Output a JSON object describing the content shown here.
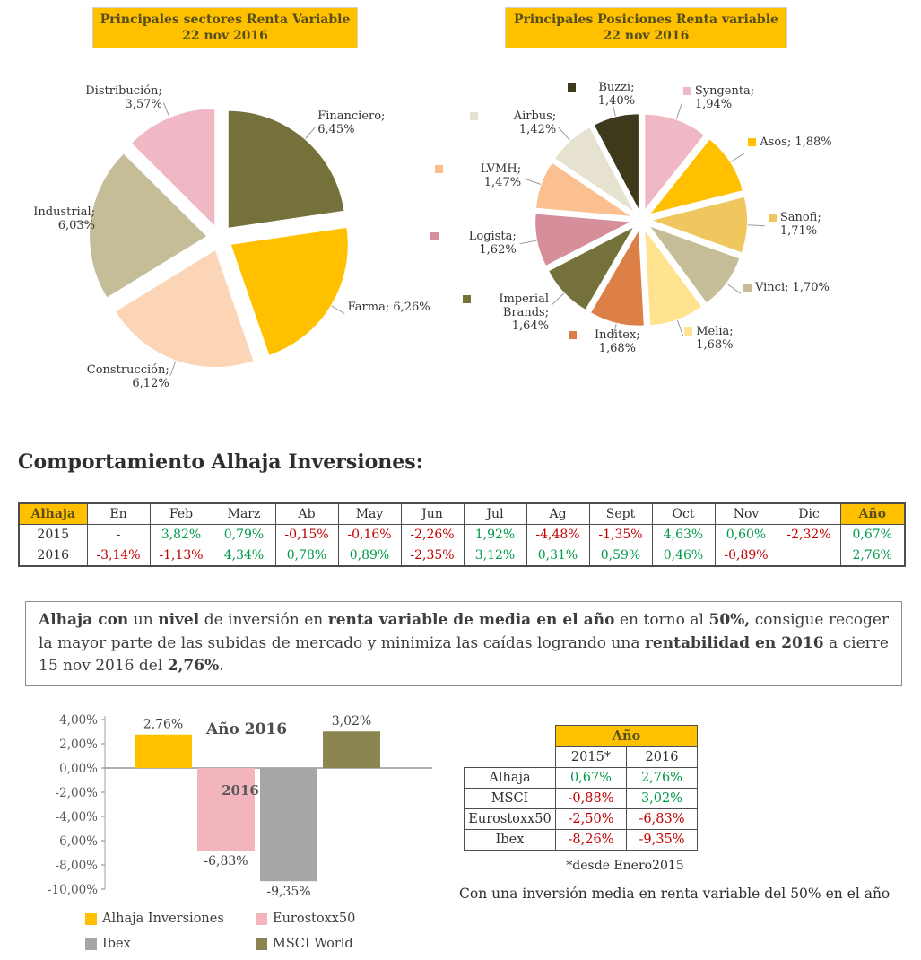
{
  "page": {
    "heading": "Comportamiento Alhaja Inversiones:",
    "paragraph_segments": [
      {
        "text": "Alhaja con",
        "bold": true
      },
      {
        "text": " un ",
        "bold": false
      },
      {
        "text": "nivel",
        "bold": true
      },
      {
        "text": " de inversión en ",
        "bold": false
      },
      {
        "text": "renta variable de media en el año",
        "bold": true
      },
      {
        "text": " en torno al ",
        "bold": false
      },
      {
        "text": "50%,",
        "bold": true
      },
      {
        "text": " consigue recoger la mayor parte de las subidas de mercado y minimiza las caídas logrando una ",
        "bold": false
      },
      {
        "text": "rentabilidad en 2016",
        "bold": true
      },
      {
        "text": " a cierre 15 nov 2016 del ",
        "bold": false
      },
      {
        "text": " 2,76%",
        "bold": true
      },
      {
        "text": ".",
        "bold": false
      }
    ],
    "footnote": "*desde Enero2015",
    "closing_text": "Con una inversión media en renta variable del 50% en el año"
  },
  "monthly_table": {
    "headers": [
      "Alhaja",
      "En",
      "Feb",
      "Marz",
      "Ab",
      "May",
      "Jun",
      "Jul",
      "Ag",
      "Sept",
      "Oct",
      "Nov",
      "Dic",
      "Año"
    ],
    "rows": [
      {
        "year": "2015",
        "values": [
          "-",
          "3,82%",
          "0,79%",
          "-0,15%",
          "-0,16%",
          "-2,26%",
          "1,92%",
          "-4,48%",
          "-1,35%",
          "4,63%",
          "0,60%",
          "-2,32%",
          "0,67%"
        ]
      },
      {
        "year": "2016",
        "values": [
          "-3,14%",
          "-1,13%",
          "4,34%",
          "0,78%",
          "0,89%",
          "-2,35%",
          "3,12%",
          "0,31%",
          "0,59%",
          "0,46%",
          "-0,89%",
          "",
          "2,76%"
        ]
      }
    ]
  },
  "summary_table": {
    "title": "Año",
    "col_headers": [
      "2015*",
      "2016"
    ],
    "rows": [
      {
        "label": "Alhaja",
        "values": [
          "0,67%",
          "2,76%"
        ]
      },
      {
        "label": "MSCI",
        "values": [
          "-0,88%",
          "3,02%"
        ]
      },
      {
        "label": "Eurostoxx50",
        "values": [
          "-2,50%",
          "-6,83%"
        ]
      },
      {
        "label": "Ibex",
        "values": [
          "-8,26%",
          "-9,35%"
        ]
      }
    ]
  },
  "colors": {
    "accent_yellow": "#FFC000",
    "accent_text": "#564F1D",
    "positive": "#009A49",
    "negative": "#C00000",
    "axis_text": "#595959"
  },
  "chart_data": [
    {
      "type": "pie",
      "title": "Principales sectores Renta Variable",
      "subtitle": "22 nov 2016",
      "unit": "%",
      "labels_have_markers": false,
      "slices": [
        {
          "name": "Financiero",
          "value": 6.45,
          "color": "#75713B"
        },
        {
          "name": "Farma",
          "value": 6.26,
          "color": "#FFC000"
        },
        {
          "name": "Construcción",
          "value": 6.12,
          "color": "#FBD5B5"
        },
        {
          "name": "Industrial",
          "value": 6.03,
          "color": "#C4BD97"
        },
        {
          "name": "Distribución",
          "value": 3.57,
          "color": "#F0B8C4"
        }
      ]
    },
    {
      "type": "pie",
      "title": "Principales Posiciones Renta variable",
      "subtitle": "22 nov 2016",
      "unit": "%",
      "labels_have_markers": true,
      "slices": [
        {
          "name": "Syngenta",
          "value": 1.94,
          "color": "#F0B8C4"
        },
        {
          "name": "Asos",
          "value": 1.88,
          "color": "#FFC000"
        },
        {
          "name": "Sanofi",
          "value": 1.71,
          "color": "#EFC75E"
        },
        {
          "name": "Vinci",
          "value": 1.7,
          "color": "#C4BD97"
        },
        {
          "name": "Melia",
          "value": 1.68,
          "color": "#FFE38F"
        },
        {
          "name": "Inditex",
          "value": 1.68,
          "color": "#DD8047"
        },
        {
          "name": "Imperial Brands",
          "value": 1.64,
          "color": "#75713B"
        },
        {
          "name": "Logista",
          "value": 1.62,
          "color": "#D78E9B"
        },
        {
          "name": "LVMH",
          "value": 1.47,
          "color": "#FAC090"
        },
        {
          "name": "Airbus",
          "value": 1.42,
          "color": "#E6E2CF"
        },
        {
          "name": "Buzzi",
          "value": 1.4,
          "color": "#3F391C"
        }
      ]
    },
    {
      "type": "bar",
      "title": "Año 2016",
      "category_label": "2016",
      "categories": [
        "Alhaja Inversiones",
        "Eurostoxx50",
        "Ibex",
        "MSCI World"
      ],
      "values": [
        2.76,
        -6.83,
        -9.35,
        3.02
      ],
      "colors": [
        "#FFC000",
        "#F2B5BD",
        "#A6A6A6",
        "#8B8650"
      ],
      "ylim": [
        -10,
        4
      ],
      "ytick_step": 2,
      "legend_position": "bottom"
    }
  ]
}
